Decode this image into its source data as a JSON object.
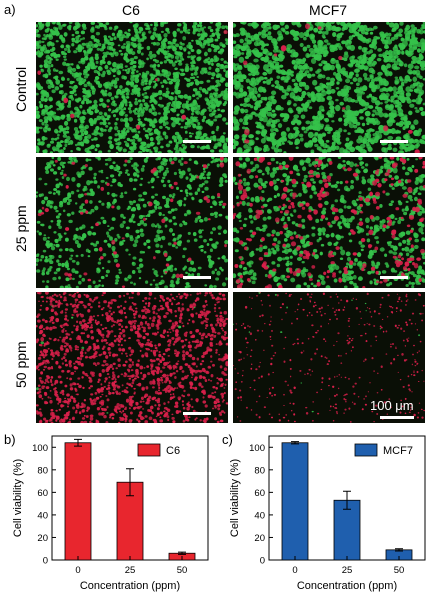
{
  "panel_a": {
    "letter": "a)",
    "columns": [
      "C6",
      "MCF7"
    ],
    "rows": [
      "Control",
      "25 ppm",
      "50 ppm"
    ],
    "scale_bar_label": "100 μm",
    "colors": {
      "live": "#35c24a",
      "dead": "#d8204a",
      "background": "#0a0f06"
    }
  },
  "panel_b": {
    "letter": "b)"
  },
  "panel_c": {
    "letter": "c)"
  },
  "chart_data": [
    {
      "type": "bar",
      "categories": [
        "0",
        "25",
        "50"
      ],
      "series": [
        {
          "name": "C6",
          "values": [
            104,
            69,
            6
          ],
          "errors": [
            3,
            12,
            1
          ]
        }
      ],
      "xlabel": "Concentration (ppm)",
      "ylabel": "Cell viability (%)",
      "ylim": [
        0,
        110
      ],
      "yticks": [
        0,
        20,
        40,
        60,
        80,
        100
      ],
      "legend": "top-right",
      "color": "#e8262e"
    },
    {
      "type": "bar",
      "categories": [
        "0",
        "25",
        "50"
      ],
      "series": [
        {
          "name": "MCF7",
          "values": [
            104,
            53,
            9
          ],
          "errors": [
            1,
            8,
            1
          ]
        }
      ],
      "xlabel": "Concentration (ppm)",
      "ylabel": "Cell viability (%)",
      "ylim": [
        0,
        110
      ],
      "yticks": [
        0,
        20,
        40,
        60,
        80,
        100
      ],
      "legend": "top-right",
      "color": "#1f5fae"
    }
  ]
}
